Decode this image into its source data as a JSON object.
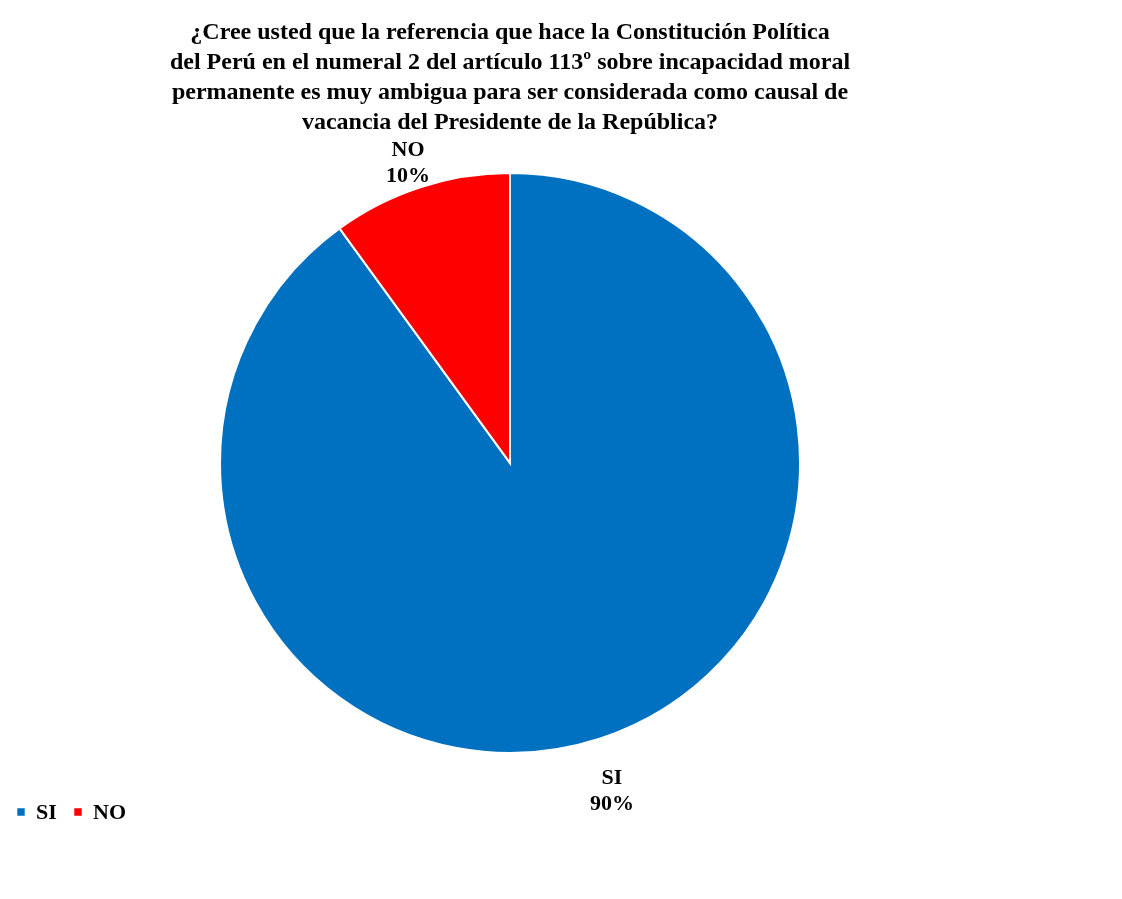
{
  "chart_data": {
    "type": "pie",
    "title": "¿Cree usted que la referencia que hace la Constitución Política del Perú en el numeral 2 del artículo 113º sobre incapacidad moral permanente es muy ambigua para ser considerada como causal de vacancia del Presidente de la República?",
    "categories": [
      "SI",
      "NO"
    ],
    "values": [
      90,
      10
    ],
    "colors": [
      "#0070c0",
      "#ff0000"
    ],
    "value_labels": [
      "90%",
      "10%"
    ],
    "legend": "bottom"
  }
}
